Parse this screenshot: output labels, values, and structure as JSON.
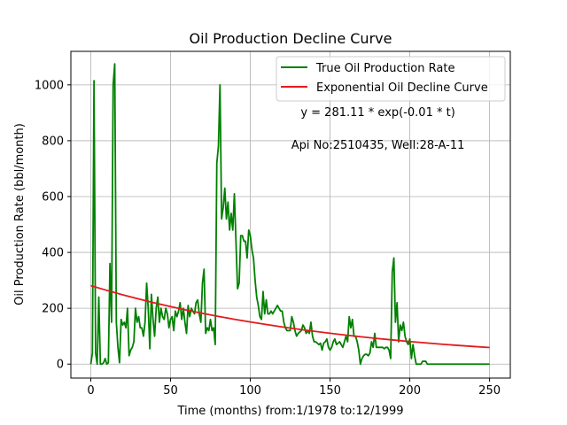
{
  "chart_data": {
    "type": "line",
    "title": "Oil Production Decline Curve",
    "xlabel": "Time (months) from:1/1978 to:12/1999",
    "ylabel": "Oil Production Rate (bbl/month)",
    "xlim": [
      -12.5,
      263
    ],
    "ylim": [
      -50,
      1120
    ],
    "xticks": [
      0,
      50,
      100,
      150,
      200,
      250
    ],
    "yticks": [
      0,
      200,
      400,
      600,
      800,
      1000
    ],
    "grid": true,
    "legend_position": "top-right",
    "annotations": [
      {
        "text": "y = 281.11 * exp(-0.01 * t)",
        "x": 180,
        "y": 888
      },
      {
        "text": "Api No:2510435, Well:28-A-11",
        "x": 180,
        "y": 772
      }
    ],
    "series": [
      {
        "name": "True Oil Production Rate",
        "color": "#008000",
        "points": [
          [
            0,
            0
          ],
          [
            1,
            40
          ],
          [
            2,
            1015
          ],
          [
            3,
            40
          ],
          [
            4,
            0
          ],
          [
            5,
            240
          ],
          [
            6,
            0
          ],
          [
            7,
            0
          ],
          [
            8,
            5
          ],
          [
            9,
            20
          ],
          [
            10,
            0
          ],
          [
            11,
            5
          ],
          [
            12,
            360
          ],
          [
            13,
            150
          ],
          [
            14,
            1000
          ],
          [
            15,
            1075
          ],
          [
            16,
            150
          ],
          [
            17,
            60
          ],
          [
            18,
            5
          ],
          [
            19,
            160
          ],
          [
            20,
            140
          ],
          [
            21,
            150
          ],
          [
            22,
            130
          ],
          [
            23,
            200
          ],
          [
            24,
            30
          ],
          [
            25,
            50
          ],
          [
            26,
            60
          ],
          [
            27,
            80
          ],
          [
            28,
            200
          ],
          [
            29,
            150
          ],
          [
            30,
            170
          ],
          [
            31,
            130
          ],
          [
            32,
            130
          ],
          [
            33,
            100
          ],
          [
            34,
            150
          ],
          [
            35,
            290
          ],
          [
            36,
            200
          ],
          [
            37,
            55
          ],
          [
            38,
            250
          ],
          [
            39,
            160
          ],
          [
            40,
            100
          ],
          [
            41,
            200
          ],
          [
            42,
            240
          ],
          [
            43,
            150
          ],
          [
            44,
            200
          ],
          [
            45,
            170
          ],
          [
            46,
            160
          ],
          [
            47,
            200
          ],
          [
            48,
            180
          ],
          [
            49,
            130
          ],
          [
            50,
            160
          ],
          [
            51,
            170
          ],
          [
            52,
            120
          ],
          [
            53,
            190
          ],
          [
            54,
            170
          ],
          [
            55,
            190
          ],
          [
            56,
            220
          ],
          [
            57,
            160
          ],
          [
            58,
            200
          ],
          [
            59,
            150
          ],
          [
            60,
            110
          ],
          [
            61,
            210
          ],
          [
            62,
            170
          ],
          [
            63,
            200
          ],
          [
            64,
            190
          ],
          [
            65,
            180
          ],
          [
            66,
            220
          ],
          [
            67,
            230
          ],
          [
            68,
            180
          ],
          [
            69,
            150
          ],
          [
            70,
            290
          ],
          [
            71,
            340
          ],
          [
            72,
            110
          ],
          [
            73,
            130
          ],
          [
            74,
            120
          ],
          [
            75,
            160
          ],
          [
            76,
            120
          ],
          [
            77,
            130
          ],
          [
            78,
            70
          ],
          [
            79,
            720
          ],
          [
            80,
            780
          ],
          [
            81,
            1000
          ],
          [
            82,
            520
          ],
          [
            83,
            560
          ],
          [
            84,
            630
          ],
          [
            85,
            520
          ],
          [
            86,
            580
          ],
          [
            87,
            480
          ],
          [
            88,
            540
          ],
          [
            89,
            480
          ],
          [
            90,
            610
          ],
          [
            91,
            440
          ],
          [
            92,
            270
          ],
          [
            93,
            290
          ],
          [
            94,
            460
          ],
          [
            95,
            460
          ],
          [
            96,
            440
          ],
          [
            97,
            440
          ],
          [
            98,
            380
          ],
          [
            99,
            480
          ],
          [
            100,
            460
          ],
          [
            101,
            410
          ],
          [
            102,
            380
          ],
          [
            103,
            300
          ],
          [
            104,
            240
          ],
          [
            105,
            210
          ],
          [
            106,
            170
          ],
          [
            107,
            160
          ],
          [
            108,
            260
          ],
          [
            109,
            180
          ],
          [
            110,
            230
          ],
          [
            111,
            180
          ],
          [
            112,
            180
          ],
          [
            113,
            190
          ],
          [
            114,
            180
          ],
          [
            115,
            190
          ],
          [
            116,
            200
          ],
          [
            117,
            210
          ],
          [
            118,
            200
          ],
          [
            119,
            190
          ],
          [
            120,
            190
          ],
          [
            121,
            150
          ],
          [
            122,
            130
          ],
          [
            123,
            120
          ],
          [
            124,
            120
          ],
          [
            125,
            120
          ],
          [
            126,
            170
          ],
          [
            127,
            150
          ],
          [
            128,
            120
          ],
          [
            129,
            100
          ],
          [
            130,
            110
          ],
          [
            131,
            115
          ],
          [
            132,
            120
          ],
          [
            133,
            140
          ],
          [
            134,
            130
          ],
          [
            135,
            110
          ],
          [
            136,
            120
          ],
          [
            137,
            110
          ],
          [
            138,
            150
          ],
          [
            139,
            100
          ],
          [
            140,
            80
          ],
          [
            141,
            80
          ],
          [
            142,
            75
          ],
          [
            143,
            70
          ],
          [
            144,
            75
          ],
          [
            145,
            50
          ],
          [
            146,
            75
          ],
          [
            147,
            80
          ],
          [
            148,
            90
          ],
          [
            149,
            60
          ],
          [
            150,
            50
          ],
          [
            151,
            60
          ],
          [
            152,
            80
          ],
          [
            153,
            90
          ],
          [
            154,
            70
          ],
          [
            155,
            75
          ],
          [
            156,
            80
          ],
          [
            157,
            70
          ],
          [
            158,
            60
          ],
          [
            159,
            80
          ],
          [
            160,
            100
          ],
          [
            161,
            80
          ],
          [
            162,
            170
          ],
          [
            163,
            130
          ],
          [
            164,
            160
          ],
          [
            165,
            100
          ],
          [
            166,
            100
          ],
          [
            167,
            80
          ],
          [
            168,
            50
          ],
          [
            169,
            0
          ],
          [
            170,
            20
          ],
          [
            171,
            30
          ],
          [
            172,
            35
          ],
          [
            173,
            35
          ],
          [
            174,
            30
          ],
          [
            175,
            40
          ],
          [
            176,
            80
          ],
          [
            177,
            60
          ],
          [
            178,
            110
          ],
          [
            179,
            60
          ],
          [
            180,
            60
          ],
          [
            181,
            60
          ],
          [
            182,
            60
          ],
          [
            183,
            60
          ],
          [
            184,
            55
          ],
          [
            185,
            60
          ],
          [
            186,
            60
          ],
          [
            187,
            50
          ],
          [
            188,
            20
          ],
          [
            189,
            330
          ],
          [
            190,
            380
          ],
          [
            191,
            150
          ],
          [
            192,
            220
          ],
          [
            193,
            80
          ],
          [
            194,
            140
          ],
          [
            195,
            120
          ],
          [
            196,
            150
          ],
          [
            197,
            100
          ],
          [
            198,
            80
          ],
          [
            199,
            70
          ],
          [
            200,
            90
          ],
          [
            201,
            20
          ],
          [
            202,
            70
          ],
          [
            203,
            30
          ],
          [
            204,
            0
          ],
          [
            205,
            0
          ],
          [
            206,
            0
          ],
          [
            207,
            0
          ],
          [
            208,
            10
          ],
          [
            209,
            10
          ],
          [
            210,
            10
          ],
          [
            211,
            0
          ],
          [
            212,
            0
          ],
          [
            215,
            0
          ],
          [
            220,
            0
          ],
          [
            230,
            0
          ],
          [
            240,
            0
          ],
          [
            250,
            0
          ]
        ]
      },
      {
        "name": "Exponential Oil Decline Curve",
        "color": "#e31a1c",
        "points": [
          [
            0,
            281.1
          ],
          [
            10,
            264.1
          ],
          [
            20,
            248.2
          ],
          [
            30,
            233.2
          ],
          [
            40,
            219.1
          ],
          [
            50,
            205.9
          ],
          [
            60,
            193.5
          ],
          [
            70,
            181.8
          ],
          [
            80,
            170.8
          ],
          [
            90,
            160.5
          ],
          [
            100,
            150.8
          ],
          [
            110,
            141.7
          ],
          [
            120,
            133.2
          ],
          [
            130,
            125.1
          ],
          [
            140,
            117.6
          ],
          [
            150,
            110.5
          ],
          [
            160,
            103.8
          ],
          [
            170,
            97.5
          ],
          [
            180,
            91.6
          ],
          [
            190,
            86.1
          ],
          [
            200,
            80.9
          ],
          [
            210,
            76.0
          ],
          [
            220,
            71.4
          ],
          [
            230,
            67.1
          ],
          [
            240,
            63.1
          ],
          [
            250,
            59.3
          ]
        ]
      }
    ]
  }
}
